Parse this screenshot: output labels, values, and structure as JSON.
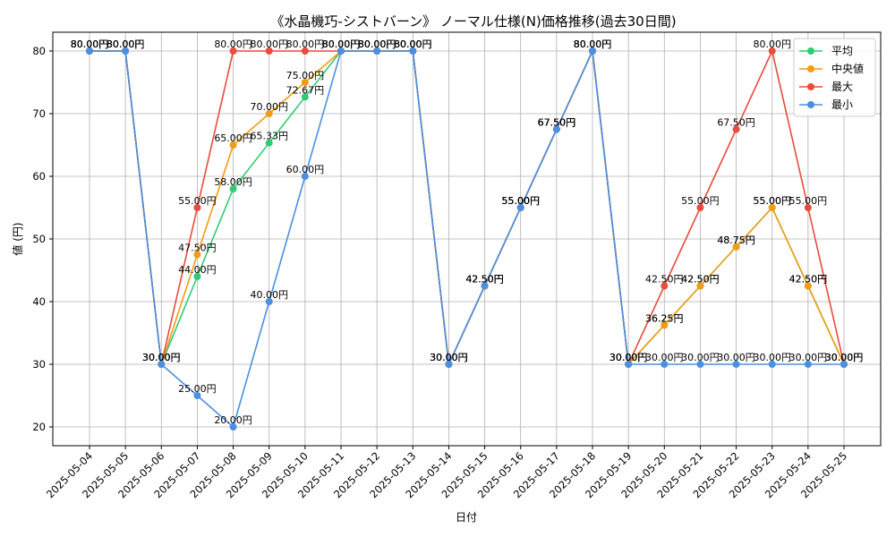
{
  "chart_data": {
    "type": "line",
    "title": "《水晶機巧-シストバーン》 ノーマル仕様(N)価格推移(過去30日間)",
    "xlabel": "日付",
    "ylabel": "値 (円)",
    "ylim": [
      17,
      83
    ],
    "yticks": [
      20,
      30,
      40,
      50,
      60,
      70,
      80
    ],
    "grid": true,
    "legend_position": "top-right",
    "label_suffix": "円",
    "categories": [
      "2025-05-04",
      "2025-05-05",
      "2025-05-06",
      "2025-05-07",
      "2025-05-08",
      "2025-05-09",
      "2025-05-10",
      "2025-05-11",
      "2025-05-12",
      "2025-05-13",
      "2025-05-14",
      "2025-05-15",
      "2025-05-16",
      "2025-05-17",
      "2025-05-18",
      "2025-05-19",
      "2025-05-20",
      "2025-05-21",
      "2025-05-22",
      "2025-05-23",
      "2025-05-24",
      "2025-05-25"
    ],
    "series": [
      {
        "name": "平均",
        "color": "#2ecc71",
        "values": [
          80,
          80,
          30,
          44,
          58,
          65.33,
          72.67,
          80,
          80,
          80,
          30,
          42.5,
          55,
          67.5,
          80,
          30,
          36.25,
          42.5,
          48.75,
          55,
          42.5,
          30
        ]
      },
      {
        "name": "中央値",
        "color": "#f39c12",
        "values": [
          80,
          80,
          30,
          47.5,
          65,
          70,
          75,
          80,
          80,
          80,
          30,
          42.5,
          55,
          67.5,
          80,
          30,
          36.25,
          42.5,
          48.75,
          55,
          42.5,
          30
        ]
      },
      {
        "name": "最大",
        "color": "#e74c3c",
        "values": [
          80,
          80,
          30,
          55,
          80,
          80,
          80,
          80,
          80,
          80,
          30,
          42.5,
          55,
          67.5,
          80,
          30,
          42.5,
          55,
          67.5,
          80,
          55,
          30
        ]
      },
      {
        "name": "最小",
        "color": "#4a90e2",
        "values": [
          80,
          80,
          30,
          25,
          20,
          40,
          60,
          80,
          80,
          80,
          30,
          42.5,
          55,
          67.5,
          80,
          30,
          30,
          30,
          30,
          30,
          30,
          30
        ]
      }
    ]
  }
}
